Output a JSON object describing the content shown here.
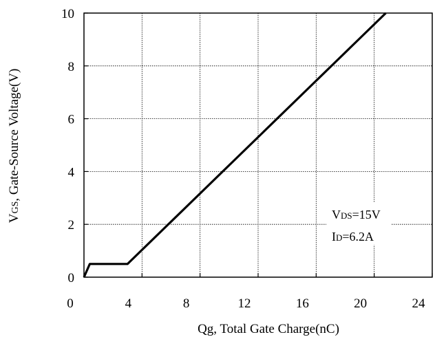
{
  "chart_data": {
    "type": "line",
    "xlabel": "Qg, Total Gate Charge(nC)",
    "ylabel_main": "V",
    "ylabel_sub": "GS",
    "ylabel_rest": ", Gate-Source Voltage(V)",
    "xlim": [
      0,
      24
    ],
    "ylim": [
      0,
      10
    ],
    "x_ticks": [
      0,
      4,
      8,
      12,
      16,
      20,
      24
    ],
    "y_ticks": [
      0,
      2,
      4,
      6,
      8,
      10
    ],
    "grid": true,
    "series": [
      {
        "x": [
          0,
          0.4,
          0.8,
          3.0,
          20.8
        ],
        "y": [
          0,
          0.5,
          0.5,
          0.5,
          10
        ]
      }
    ],
    "annotations": {
      "vds_main": "V",
      "vds_sub": "DS",
      "vds_rest": "=15V",
      "id_main": "I",
      "id_sub": "D",
      "id_rest": "=6.2A"
    }
  }
}
